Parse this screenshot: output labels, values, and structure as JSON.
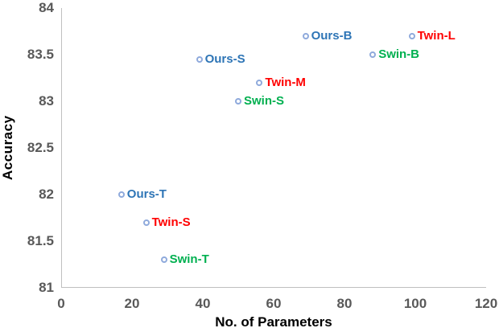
{
  "chart_data": {
    "type": "scatter",
    "title": "",
    "xlabel": "No. of Parameters",
    "ylabel": "Accuracy",
    "xlim": [
      0,
      120
    ],
    "ylim": [
      81,
      84
    ],
    "x_ticks": [
      "0",
      "20",
      "40",
      "60",
      "80",
      "100",
      "120"
    ],
    "y_ticks": [
      "84",
      "83.5",
      "83",
      "82.5",
      "82",
      "81.5",
      "81"
    ],
    "grid": false,
    "legend_position": "none",
    "marker_style": {
      "shape": "hollow-circle",
      "color": "#8FAADC"
    },
    "series": [
      {
        "name": "Ours",
        "label_color": "#2E75B6",
        "points": [
          {
            "label": "Ours-T",
            "x": 17,
            "y": 82.0
          },
          {
            "label": "Ours-S",
            "x": 39,
            "y": 83.45
          },
          {
            "label": "Ours-B",
            "x": 69,
            "y": 83.7
          }
        ]
      },
      {
        "name": "Twin",
        "label_color": "#FF0000",
        "points": [
          {
            "label": "Twin-S",
            "x": 24,
            "y": 81.7
          },
          {
            "label": "Twin-M",
            "x": 56,
            "y": 83.2
          },
          {
            "label": "Twin-L",
            "x": 99,
            "y": 83.7
          }
        ]
      },
      {
        "name": "Swin",
        "label_color": "#00B050",
        "points": [
          {
            "label": "Swin-T",
            "x": 29,
            "y": 81.3
          },
          {
            "label": "Swin-S",
            "x": 50,
            "y": 83.0
          },
          {
            "label": "Swin-B",
            "x": 88,
            "y": 83.5
          }
        ]
      }
    ],
    "axis_style": {
      "tick_color": "#595959",
      "line_color": "#BFBFBF",
      "title_color": "#000000"
    }
  }
}
